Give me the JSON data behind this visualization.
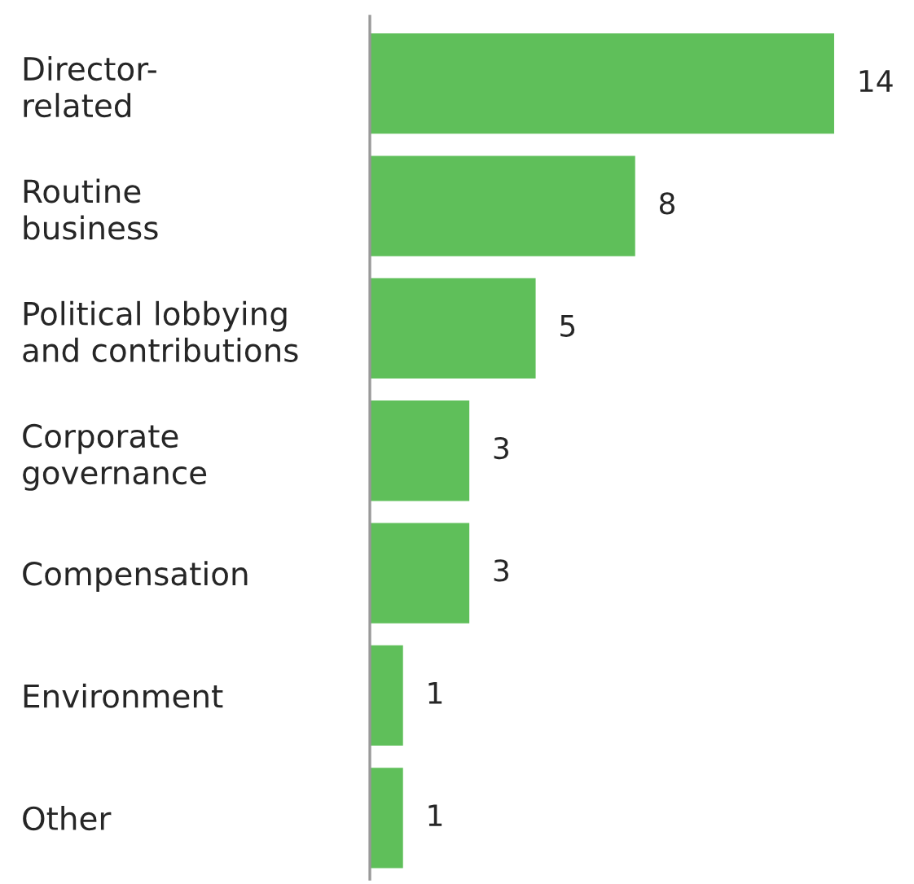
{
  "chart_data": {
    "type": "bar",
    "orientation": "horizontal",
    "categories": [
      "Director-\nrelated",
      "Routine\nbusiness",
      "Political lobbying\nand contributions",
      "Corporate\ngovernance",
      "Compensation",
      "Environment",
      "Other"
    ],
    "values": [
      14,
      8,
      5,
      3,
      3,
      1,
      1
    ],
    "color": "#5fbf5a",
    "data_labels": true,
    "grid": false,
    "legend": false
  }
}
